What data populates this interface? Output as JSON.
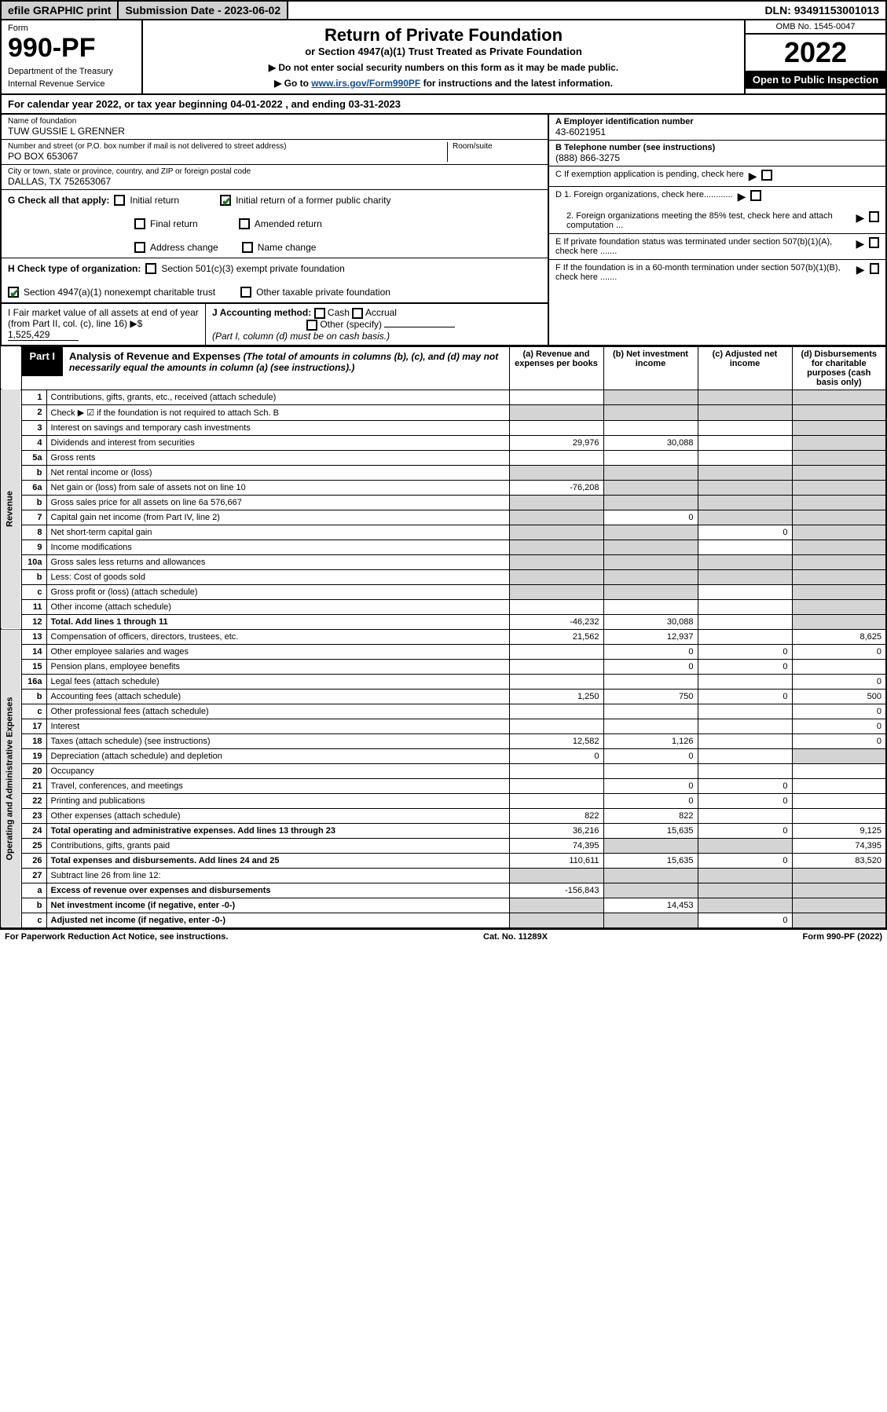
{
  "topbar": {
    "efile": "efile GRAPHIC print",
    "sub_date": "Submission Date - 2023-06-02",
    "dln": "DLN: 93491153001013"
  },
  "header": {
    "form_word": "Form",
    "form_number": "990-PF",
    "dept": "Department of the Treasury",
    "irs": "Internal Revenue Service",
    "title": "Return of Private Foundation",
    "subtitle": "or Section 4947(a)(1) Trust Treated as Private Foundation",
    "instr1": "▶ Do not enter social security numbers on this form as it may be made public.",
    "instr2_pre": "▶ Go to ",
    "instr2_link": "www.irs.gov/Form990PF",
    "instr2_post": " for instructions and the latest information.",
    "omb": "OMB No. 1545-0047",
    "year": "2022",
    "inspection": "Open to Public Inspection"
  },
  "cal_year": "For calendar year 2022, or tax year beginning 04-01-2022          , and ending 03-31-2023",
  "foundation": {
    "name_label": "Name of foundation",
    "name": "TUW GUSSIE L GRENNER",
    "addr_label": "Number and street (or P.O. box number if mail is not delivered to street address)",
    "addr": "PO BOX 653067",
    "room_label": "Room/suite",
    "city_label": "City or town, state or province, country, and ZIP or foreign postal code",
    "city": "DALLAS, TX  752653067"
  },
  "right_info": {
    "a_label": "A Employer identification number",
    "a_val": "43-6021951",
    "b_label": "B Telephone number (see instructions)",
    "b_val": "(888) 866-3275",
    "c_label": "C If exemption application is pending, check here",
    "d1": "D 1. Foreign organizations, check here............",
    "d2": "2. Foreign organizations meeting the 85% test, check here and attach computation ...",
    "e": "E If private foundation status was terminated under section 507(b)(1)(A), check here .......",
    "f": "F If the foundation is in a 60-month termination under section 507(b)(1)(B), check here ......."
  },
  "g": {
    "label": "G Check all that apply:",
    "initial": "Initial return",
    "final": "Final return",
    "addr": "Address change",
    "initial_former": "Initial return of a former public charity",
    "amended": "Amended return",
    "name": "Name change"
  },
  "h": {
    "label": "H Check type of organization:",
    "c3": "Section 501(c)(3) exempt private foundation",
    "trust": "Section 4947(a)(1) nonexempt charitable trust",
    "other": "Other taxable private foundation"
  },
  "i": {
    "label": "I Fair market value of all assets at end of year (from Part II, col. (c), line 16)",
    "arrow": "▶$",
    "val": "1,525,429"
  },
  "j": {
    "label": "J Accounting method:",
    "cash": "Cash",
    "accrual": "Accrual",
    "other": "Other (specify)",
    "note": "(Part I, column (d) must be on cash basis.)"
  },
  "part1": {
    "label": "Part I",
    "title": "Analysis of Revenue and Expenses",
    "note": "(The total of amounts in columns (b), (c), and (d) may not necessarily equal the amounts in column (a) (see instructions).)",
    "cols": {
      "a": "(a) Revenue and expenses per books",
      "b": "(b) Net investment income",
      "c": "(c) Adjusted net income",
      "d": "(d) Disbursements for charitable purposes (cash basis only)"
    }
  },
  "side_labels": {
    "revenue": "Revenue",
    "expenses": "Operating and Administrative Expenses"
  },
  "rows": [
    {
      "n": "1",
      "d": "Contributions, gifts, grants, etc., received (attach schedule)",
      "a": "",
      "b": "shaded",
      "c": "shaded",
      "colD": "shaded"
    },
    {
      "n": "2",
      "d": "Check ▶ ☑ if the foundation is not required to attach Sch. B",
      "a": "shaded",
      "b": "shaded",
      "c": "shaded",
      "colD": "shaded"
    },
    {
      "n": "3",
      "d": "Interest on savings and temporary cash investments",
      "a": "",
      "b": "",
      "c": "",
      "colD": "shaded"
    },
    {
      "n": "4",
      "d": "Dividends and interest from securities",
      "a": "29,976",
      "b": "30,088",
      "c": "",
      "colD": "shaded"
    },
    {
      "n": "5a",
      "d": "Gross rents",
      "a": "",
      "b": "",
      "c": "",
      "colD": "shaded"
    },
    {
      "n": "b",
      "d": "Net rental income or (loss)",
      "a": "shaded",
      "b": "shaded",
      "c": "shaded",
      "colD": "shaded"
    },
    {
      "n": "6a",
      "d": "Net gain or (loss) from sale of assets not on line 10",
      "a": "-76,208",
      "b": "shaded",
      "c": "shaded",
      "colD": "shaded"
    },
    {
      "n": "b",
      "d": "Gross sales price for all assets on line 6a",
      "extra": "576,667",
      "a": "shaded",
      "b": "shaded",
      "c": "shaded",
      "colD": "shaded"
    },
    {
      "n": "7",
      "d": "Capital gain net income (from Part IV, line 2)",
      "a": "shaded",
      "b": "0",
      "c": "shaded",
      "colD": "shaded"
    },
    {
      "n": "8",
      "d": "Net short-term capital gain",
      "a": "shaded",
      "b": "shaded",
      "c": "0",
      "colD": "shaded"
    },
    {
      "n": "9",
      "d": "Income modifications",
      "a": "shaded",
      "b": "shaded",
      "c": "",
      "colD": "shaded"
    },
    {
      "n": "10a",
      "d": "Gross sales less returns and allowances",
      "a": "shaded",
      "b": "shaded",
      "c": "shaded",
      "colD": "shaded"
    },
    {
      "n": "b",
      "d": "Less: Cost of goods sold",
      "a": "shaded",
      "b": "shaded",
      "c": "shaded",
      "colD": "shaded"
    },
    {
      "n": "c",
      "d": "Gross profit or (loss) (attach schedule)",
      "a": "shaded",
      "b": "shaded",
      "c": "",
      "colD": "shaded"
    },
    {
      "n": "11",
      "d": "Other income (attach schedule)",
      "a": "",
      "b": "",
      "c": "",
      "colD": "shaded"
    },
    {
      "n": "12",
      "d": "Total. Add lines 1 through 11",
      "bold": true,
      "a": "-46,232",
      "b": "30,088",
      "c": "",
      "colD": "shaded"
    },
    {
      "n": "13",
      "d": "Compensation of officers, directors, trustees, etc.",
      "a": "21,562",
      "b": "12,937",
      "c": "",
      "colD": "8,625"
    },
    {
      "n": "14",
      "d": "Other employee salaries and wages",
      "a": "",
      "b": "0",
      "c": "0",
      "colD": "0"
    },
    {
      "n": "15",
      "d": "Pension plans, employee benefits",
      "a": "",
      "b": "0",
      "c": "0",
      "colD": ""
    },
    {
      "n": "16a",
      "d": "Legal fees (attach schedule)",
      "a": "",
      "b": "",
      "c": "",
      "colD": "0"
    },
    {
      "n": "b",
      "d": "Accounting fees (attach schedule)",
      "a": "1,250",
      "b": "750",
      "c": "0",
      "colD": "500"
    },
    {
      "n": "c",
      "d": "Other professional fees (attach schedule)",
      "a": "",
      "b": "",
      "c": "",
      "colD": "0"
    },
    {
      "n": "17",
      "d": "Interest",
      "a": "",
      "b": "",
      "c": "",
      "colD": "0"
    },
    {
      "n": "18",
      "d": "Taxes (attach schedule) (see instructions)",
      "a": "12,582",
      "b": "1,126",
      "c": "",
      "colD": "0"
    },
    {
      "n": "19",
      "d": "Depreciation (attach schedule) and depletion",
      "a": "0",
      "b": "0",
      "c": "",
      "colD": "shaded"
    },
    {
      "n": "20",
      "d": "Occupancy",
      "a": "",
      "b": "",
      "c": "",
      "colD": ""
    },
    {
      "n": "21",
      "d": "Travel, conferences, and meetings",
      "a": "",
      "b": "0",
      "c": "0",
      "colD": ""
    },
    {
      "n": "22",
      "d": "Printing and publications",
      "a": "",
      "b": "0",
      "c": "0",
      "colD": ""
    },
    {
      "n": "23",
      "d": "Other expenses (attach schedule)",
      "a": "822",
      "b": "822",
      "c": "",
      "colD": ""
    },
    {
      "n": "24",
      "d": "Total operating and administrative expenses. Add lines 13 through 23",
      "bold": true,
      "a": "36,216",
      "b": "15,635",
      "c": "0",
      "colD": "9,125"
    },
    {
      "n": "25",
      "d": "Contributions, gifts, grants paid",
      "a": "74,395",
      "b": "shaded",
      "c": "shaded",
      "colD": "74,395"
    },
    {
      "n": "26",
      "d": "Total expenses and disbursements. Add lines 24 and 25",
      "bold": true,
      "a": "110,611",
      "b": "15,635",
      "c": "0",
      "colD": "83,520"
    },
    {
      "n": "27",
      "d": "Subtract line 26 from line 12:",
      "a": "shaded",
      "b": "shaded",
      "c": "shaded",
      "colD": "shaded"
    },
    {
      "n": "a",
      "d": "Excess of revenue over expenses and disbursements",
      "bold": true,
      "a": "-156,843",
      "b": "shaded",
      "c": "shaded",
      "colD": "shaded"
    },
    {
      "n": "b",
      "d": "Net investment income (if negative, enter -0-)",
      "bold": true,
      "a": "shaded",
      "b": "14,453",
      "c": "shaded",
      "colD": "shaded"
    },
    {
      "n": "c",
      "d": "Adjusted net income (if negative, enter -0-)",
      "bold": true,
      "a": "shaded",
      "b": "shaded",
      "c": "0",
      "colD": "shaded"
    }
  ],
  "footer": {
    "left": "For Paperwork Reduction Act Notice, see instructions.",
    "mid": "Cat. No. 11289X",
    "right": "Form 990-PF (2022)"
  },
  "colors": {
    "shaded": "#d4d4d4",
    "link": "#0b4fa0",
    "check_green": "#1a7a1f"
  }
}
